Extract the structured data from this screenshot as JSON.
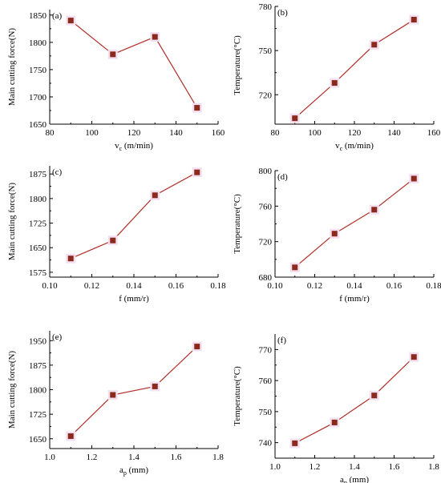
{
  "colors": {
    "line": "#b0302a",
    "marker": "#8b2a1c",
    "marker_halo": "#f3dff0"
  },
  "chart_data": [
    {
      "panel": "(a)",
      "type": "line",
      "x": [
        90,
        110,
        130,
        150
      ],
      "y": [
        1840,
        1778,
        1810,
        1680
      ],
      "xlabel_main": "v",
      "xlabel_sub": "c",
      "xlabel_unit": " (m/min)",
      "ylabel": "Main cutting force(N)",
      "xlim": [
        80,
        160
      ],
      "ylim": [
        1650,
        1860
      ],
      "xticks": [
        80,
        100,
        120,
        140,
        160
      ],
      "yticks": [
        1650,
        1700,
        1750,
        1800,
        1850
      ],
      "xtick_labels": [
        "80",
        "100",
        "120",
        "140",
        "160"
      ],
      "ytick_labels": [
        "1650",
        "1700",
        "1750",
        "1800",
        "1850"
      ],
      "grid": false
    },
    {
      "panel": "(b)",
      "type": "line",
      "x": [
        90,
        110,
        130,
        150
      ],
      "y": [
        704,
        728,
        754,
        771
      ],
      "xlabel_main": "v",
      "xlabel_sub": "c",
      "xlabel_unit": " (m/min)",
      "ylabel": "Temperature(°C)",
      "xlim": [
        80,
        160
      ],
      "ylim": [
        700,
        780
      ],
      "xticks": [
        80,
        100,
        120,
        140,
        160
      ],
      "yticks": [
        720,
        750,
        780
      ],
      "xtick_labels": [
        "80",
        "100",
        "120",
        "140",
        "160"
      ],
      "ytick_labels": [
        "720",
        "750",
        "780"
      ],
      "grid": false
    },
    {
      "panel": "(c)",
      "type": "line",
      "x": [
        0.11,
        0.13,
        0.15,
        0.17
      ],
      "y": [
        1617,
        1672,
        1810,
        1880
      ],
      "xlabel_main": "f (mm/r)",
      "xlabel_sub": "",
      "xlabel_unit": "",
      "ylabel": "Main cutting force(N)",
      "xlim": [
        0.1,
        0.18
      ],
      "ylim": [
        1560,
        1900
      ],
      "xticks": [
        0.1,
        0.12,
        0.14,
        0.16,
        0.18
      ],
      "yticks": [
        1575,
        1650,
        1725,
        1800,
        1875
      ],
      "xtick_labels": [
        "0.10",
        "0.12",
        "0.14",
        "0.16",
        "0.18"
      ],
      "ytick_labels": [
        "1575",
        "1650",
        "1725",
        "1800",
        "1875"
      ],
      "grid": false
    },
    {
      "panel": "(d)",
      "type": "line",
      "x": [
        0.11,
        0.13,
        0.15,
        0.17
      ],
      "y": [
        691,
        729,
        756,
        791
      ],
      "xlabel_main": "f (mm/r)",
      "xlabel_sub": "",
      "xlabel_unit": "",
      "ylabel": "Temperature(°C)",
      "xlim": [
        0.1,
        0.18
      ],
      "ylim": [
        680,
        800
      ],
      "xticks": [
        0.1,
        0.12,
        0.14,
        0.16,
        0.18
      ],
      "yticks": [
        680,
        720,
        760,
        800
      ],
      "xtick_labels": [
        "0.10",
        "0.12",
        "0.14",
        "0.16",
        "0.18"
      ],
      "ytick_labels": [
        "680",
        "720",
        "760",
        "800"
      ],
      "grid": false
    },
    {
      "panel": "(e)",
      "type": "line",
      "x": [
        1.1,
        1.3,
        1.5,
        1.7
      ],
      "y": [
        1658,
        1784,
        1810,
        1932
      ],
      "xlabel_main": "a",
      "xlabel_sub": "p",
      "xlabel_unit": " (mm)",
      "ylabel": "Main cutting force(N)",
      "xlim": [
        1.0,
        1.8
      ],
      "ylim": [
        1620,
        1980
      ],
      "xticks": [
        1.0,
        1.2,
        1.4,
        1.6,
        1.8
      ],
      "yticks": [
        1650,
        1725,
        1800,
        1875,
        1950
      ],
      "xtick_labels": [
        "1.0",
        "1.2",
        "1.4",
        "1.6",
        "1.8"
      ],
      "ytick_labels": [
        "1650",
        "1725",
        "1800",
        "1875",
        "1950"
      ],
      "grid": false
    },
    {
      "panel": "(f)",
      "type": "line",
      "x": [
        1.1,
        1.3,
        1.5,
        1.7
      ],
      "y": [
        739.8,
        746.5,
        755.2,
        767.6
      ],
      "xlabel_main": "a",
      "xlabel_sub": "p",
      "xlabel_unit": " (mm)",
      "ylabel": "Temperature(°C)",
      "xlim": [
        1.0,
        1.8
      ],
      "ylim": [
        735,
        775
      ],
      "xticks": [
        1.0,
        1.2,
        1.4,
        1.6,
        1.8
      ],
      "yticks": [
        740,
        750,
        760,
        770
      ],
      "xtick_labels": [
        "1.0",
        "1.2",
        "1.4",
        "1.6",
        "1.8"
      ],
      "ytick_labels": [
        "740",
        "750",
        "760",
        "770"
      ],
      "grid": false
    }
  ]
}
